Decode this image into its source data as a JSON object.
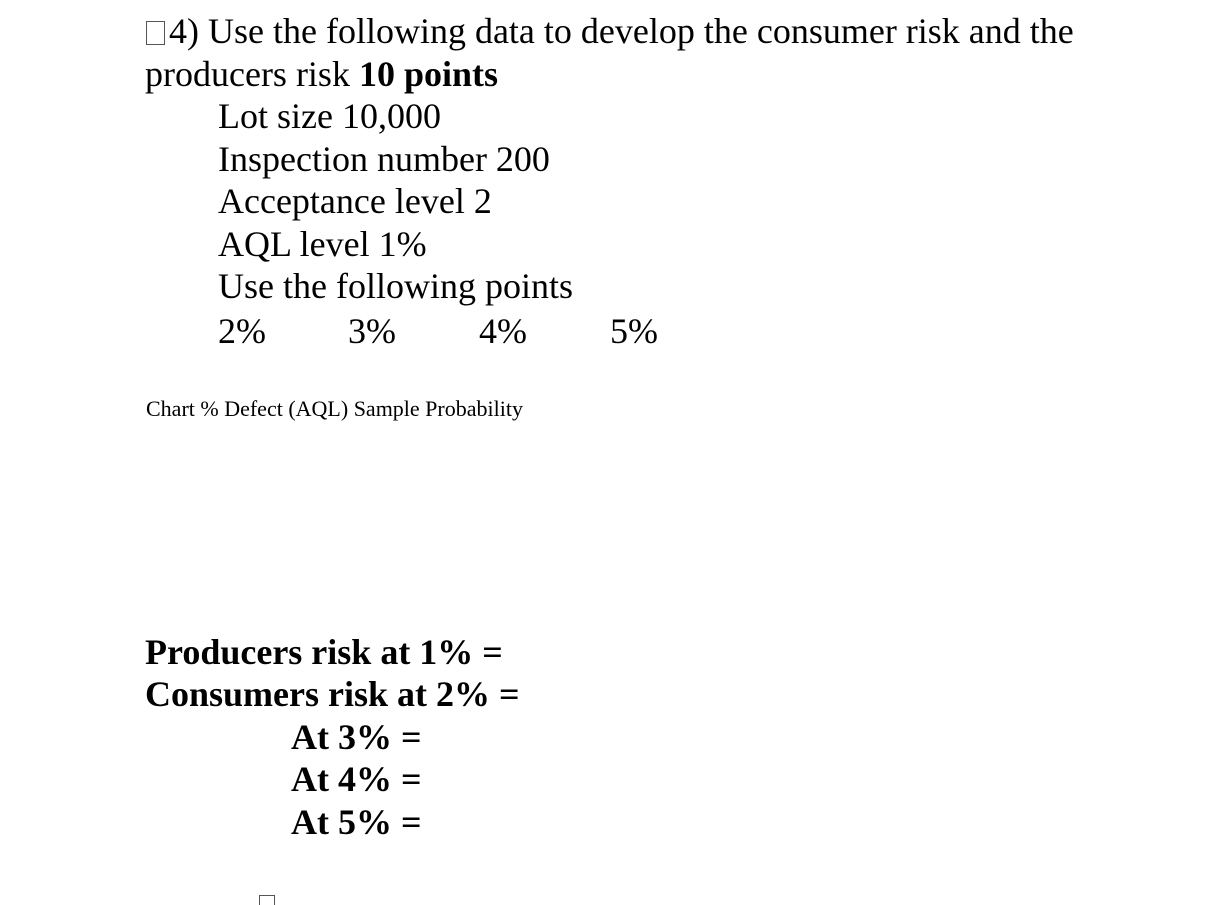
{
  "question": {
    "intro": "4) Use the following data to develop the consumer risk and the",
    "line2_text": "producers risk ",
    "line2_points": "10 points"
  },
  "data_list": [
    "Lot size 10,000",
    "Inspection number 200",
    "Acceptance level 2",
    "AQL level 1%",
    "Use the following points"
  ],
  "points": [
    "2%",
    "3%",
    "4%",
    "5%"
  ],
  "chart_caption": "Chart % Defect (AQL) Sample Probability",
  "answers": {
    "producers": "Producers risk at 1% =",
    "consumers": "Consumers risk at 2% =",
    "at": [
      "At 3% =",
      "At 4% =",
      "At 5% ="
    ]
  }
}
